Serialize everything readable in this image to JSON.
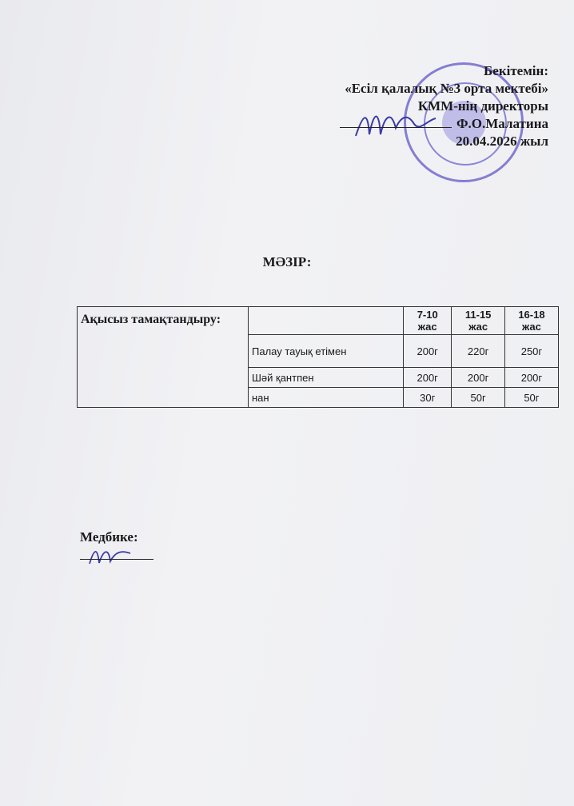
{
  "approval": {
    "lines": [
      "Бекітемін:",
      "«Есіл қалалық №3 орта мектебі»",
      "КММ-нің директоры",
      "Ф.О.Малатина",
      "20.04.2026 жыл"
    ]
  },
  "title": "МӘЗІР:",
  "table": {
    "section_label": "Ақысыз тамақтандыру:",
    "columns": [
      "",
      "7-10 жас",
      "11-15 жас",
      "16-18 жас"
    ],
    "rows": [
      {
        "item": "Палау тауық етімен",
        "values": [
          "200г",
          "220г",
          "250г"
        ]
      },
      {
        "item": "Шәй қантпен",
        "values": [
          "200г",
          "200г",
          "200г"
        ]
      },
      {
        "item": "нан",
        "values": [
          "30г",
          "50г",
          "50г"
        ]
      }
    ]
  },
  "nurse": {
    "label": "Медбике:"
  },
  "colors": {
    "stamp": "#3c32be",
    "paper": "#eeeff2"
  }
}
